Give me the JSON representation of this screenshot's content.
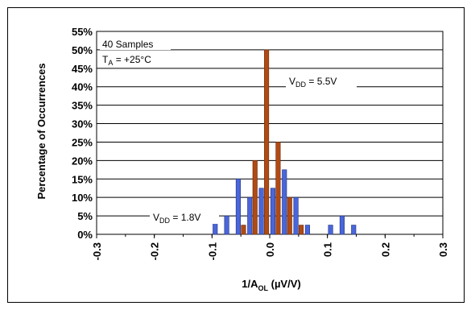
{
  "chart_data": {
    "type": "bar",
    "xlabel_main": "1/A",
    "xlabel_sub": "OL",
    "xlabel_unit": " (µV/V)",
    "ylabel": "Percentage of Occurrences",
    "xlim": [
      -0.3,
      0.3
    ],
    "ylim": [
      0,
      55
    ],
    "x_ticks": [
      "-0.3",
      "-0.2",
      "-0.1",
      "0.0",
      "0.1",
      "0.2",
      "0.3"
    ],
    "y_ticks": [
      "0%",
      "5%",
      "10%",
      "15%",
      "20%",
      "25%",
      "30%",
      "35%",
      "40%",
      "45%",
      "50%",
      "55%"
    ],
    "grid": "horizontal",
    "annotations": {
      "samples": "40 Samples",
      "temp_prefix": "T",
      "temp_sub": "A",
      "temp_suffix": " = +25°C",
      "vdd_high_prefix": "V",
      "vdd_high_sub": "DD",
      "vdd_high_suffix": " = 5.5V",
      "vdd_low_prefix": "V",
      "vdd_low_sub": "DD",
      "vdd_low_suffix": " = 1.8V"
    },
    "series": [
      {
        "color": "#4a66d9",
        "edge": "#1f2f80",
        "x": [
          -0.09,
          -0.07,
          -0.05,
          -0.03,
          -0.01,
          0.01,
          0.03,
          0.05,
          0.07,
          0.11,
          0.13,
          0.15
        ],
        "values": [
          5,
          5,
          15,
          10,
          12.5,
          12.5,
          17.5,
          10,
          2.5,
          2.5,
          5,
          2.5
        ]
      },
      {
        "color": "#b04a14",
        "edge": "#6a2a08",
        "x": [
          -0.05,
          -0.03,
          -0.01,
          0.01,
          0.03,
          0.05
        ],
        "values": [
          2.5,
          20,
          50,
          25,
          10,
          2.5
        ]
      }
    ]
  }
}
